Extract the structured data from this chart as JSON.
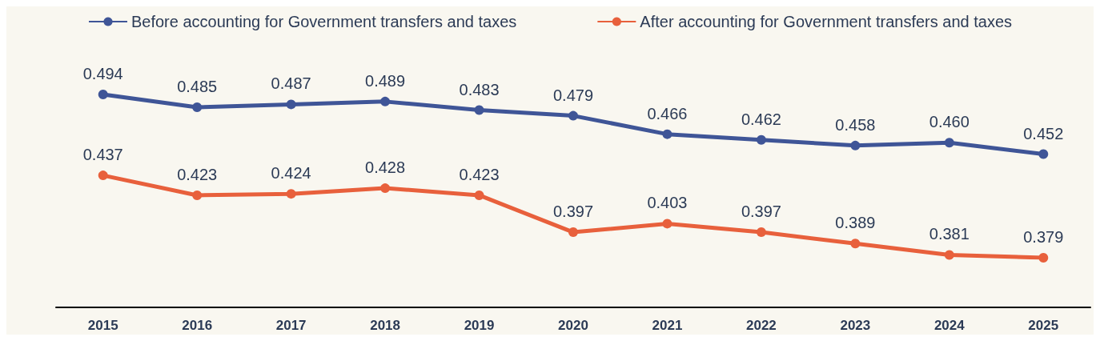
{
  "chart_data": {
    "type": "line",
    "categories": [
      "2015",
      "2016",
      "2017",
      "2018",
      "2019",
      "2020",
      "2021",
      "2022",
      "2023",
      "2024",
      "2025"
    ],
    "series": [
      {
        "name": "Before accounting for Government transfers and taxes",
        "color": "#3f5597",
        "values": [
          0.494,
          0.485,
          0.487,
          0.489,
          0.483,
          0.479,
          0.466,
          0.462,
          0.458,
          0.46,
          0.452
        ],
        "value_labels": [
          "0.494",
          "0.485",
          "0.487",
          "0.489",
          "0.483",
          "0.479",
          "0.466",
          "0.462",
          "0.458",
          "0.460",
          "0.452"
        ]
      },
      {
        "name": "After accounting for Government transfers and taxes",
        "color": "#e8603c",
        "values": [
          0.437,
          0.423,
          0.424,
          0.428,
          0.423,
          0.397,
          0.403,
          0.397,
          0.389,
          0.381,
          0.379
        ],
        "value_labels": [
          "0.437",
          "0.423",
          "0.424",
          "0.428",
          "0.423",
          "0.397",
          "0.403",
          "0.397",
          "0.389",
          "0.381",
          "0.379"
        ]
      }
    ],
    "legend": "top",
    "marker": "circle",
    "line_style": "solid",
    "grid": false
  }
}
